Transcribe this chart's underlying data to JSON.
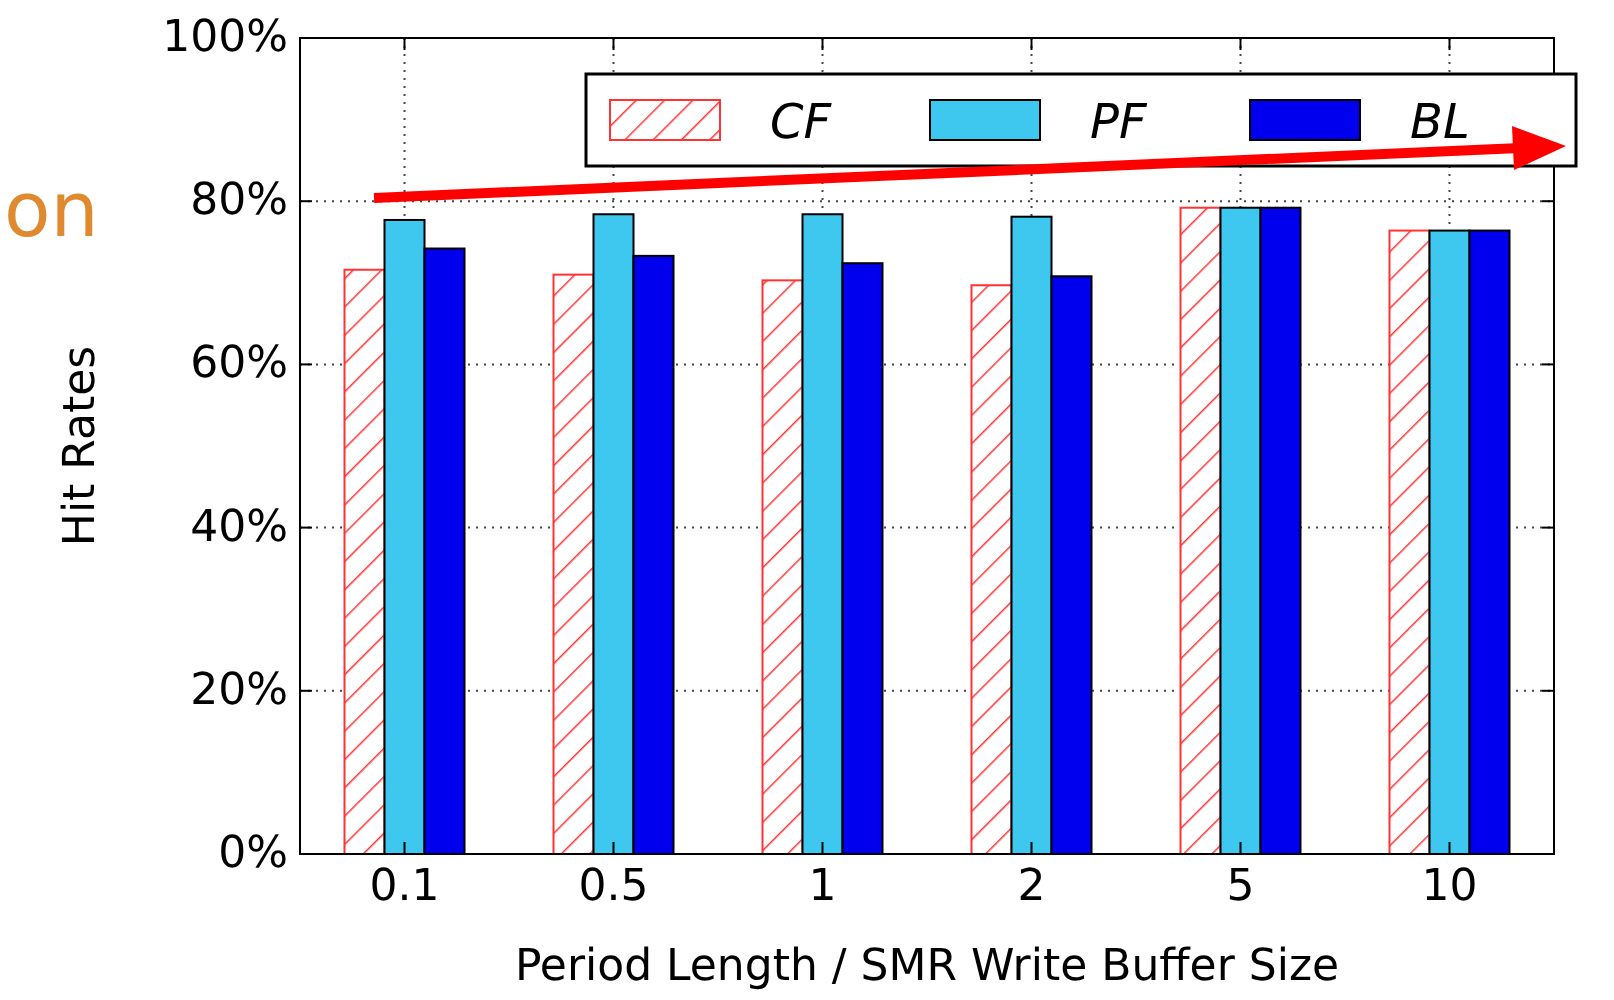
{
  "chart_data": {
    "type": "bar",
    "xlabel": "Period Length / SMR Write Buffer Size",
    "ylabel": "Hit Rates",
    "categories": [
      "0.1",
      "0.5",
      "1",
      "2",
      "5",
      "10"
    ],
    "series": [
      {
        "name": "CF",
        "color": "#ff3333",
        "values": [
          71.6,
          71.0,
          70.3,
          69.7,
          79.2,
          76.4
        ]
      },
      {
        "name": "PF",
        "color": "#3ec8f0",
        "values": [
          77.7,
          78.4,
          78.4,
          78.1,
          79.2,
          76.4
        ]
      },
      {
        "name": "BL",
        "color": "#0000ee",
        "values": [
          74.2,
          73.3,
          72.4,
          70.8,
          79.2,
          76.4
        ]
      }
    ],
    "ylim": [
      0,
      100
    ],
    "yticks": [
      {
        "value": 0,
        "label": "0%"
      },
      {
        "value": 20,
        "label": "20%"
      },
      {
        "value": 40,
        "label": "40%"
      },
      {
        "value": 60,
        "label": "60%"
      },
      {
        "value": 80,
        "label": "80%"
      },
      {
        "value": 100,
        "label": "100%"
      }
    ],
    "grid": true,
    "legend": "top right",
    "annotations": [
      "on"
    ]
  }
}
